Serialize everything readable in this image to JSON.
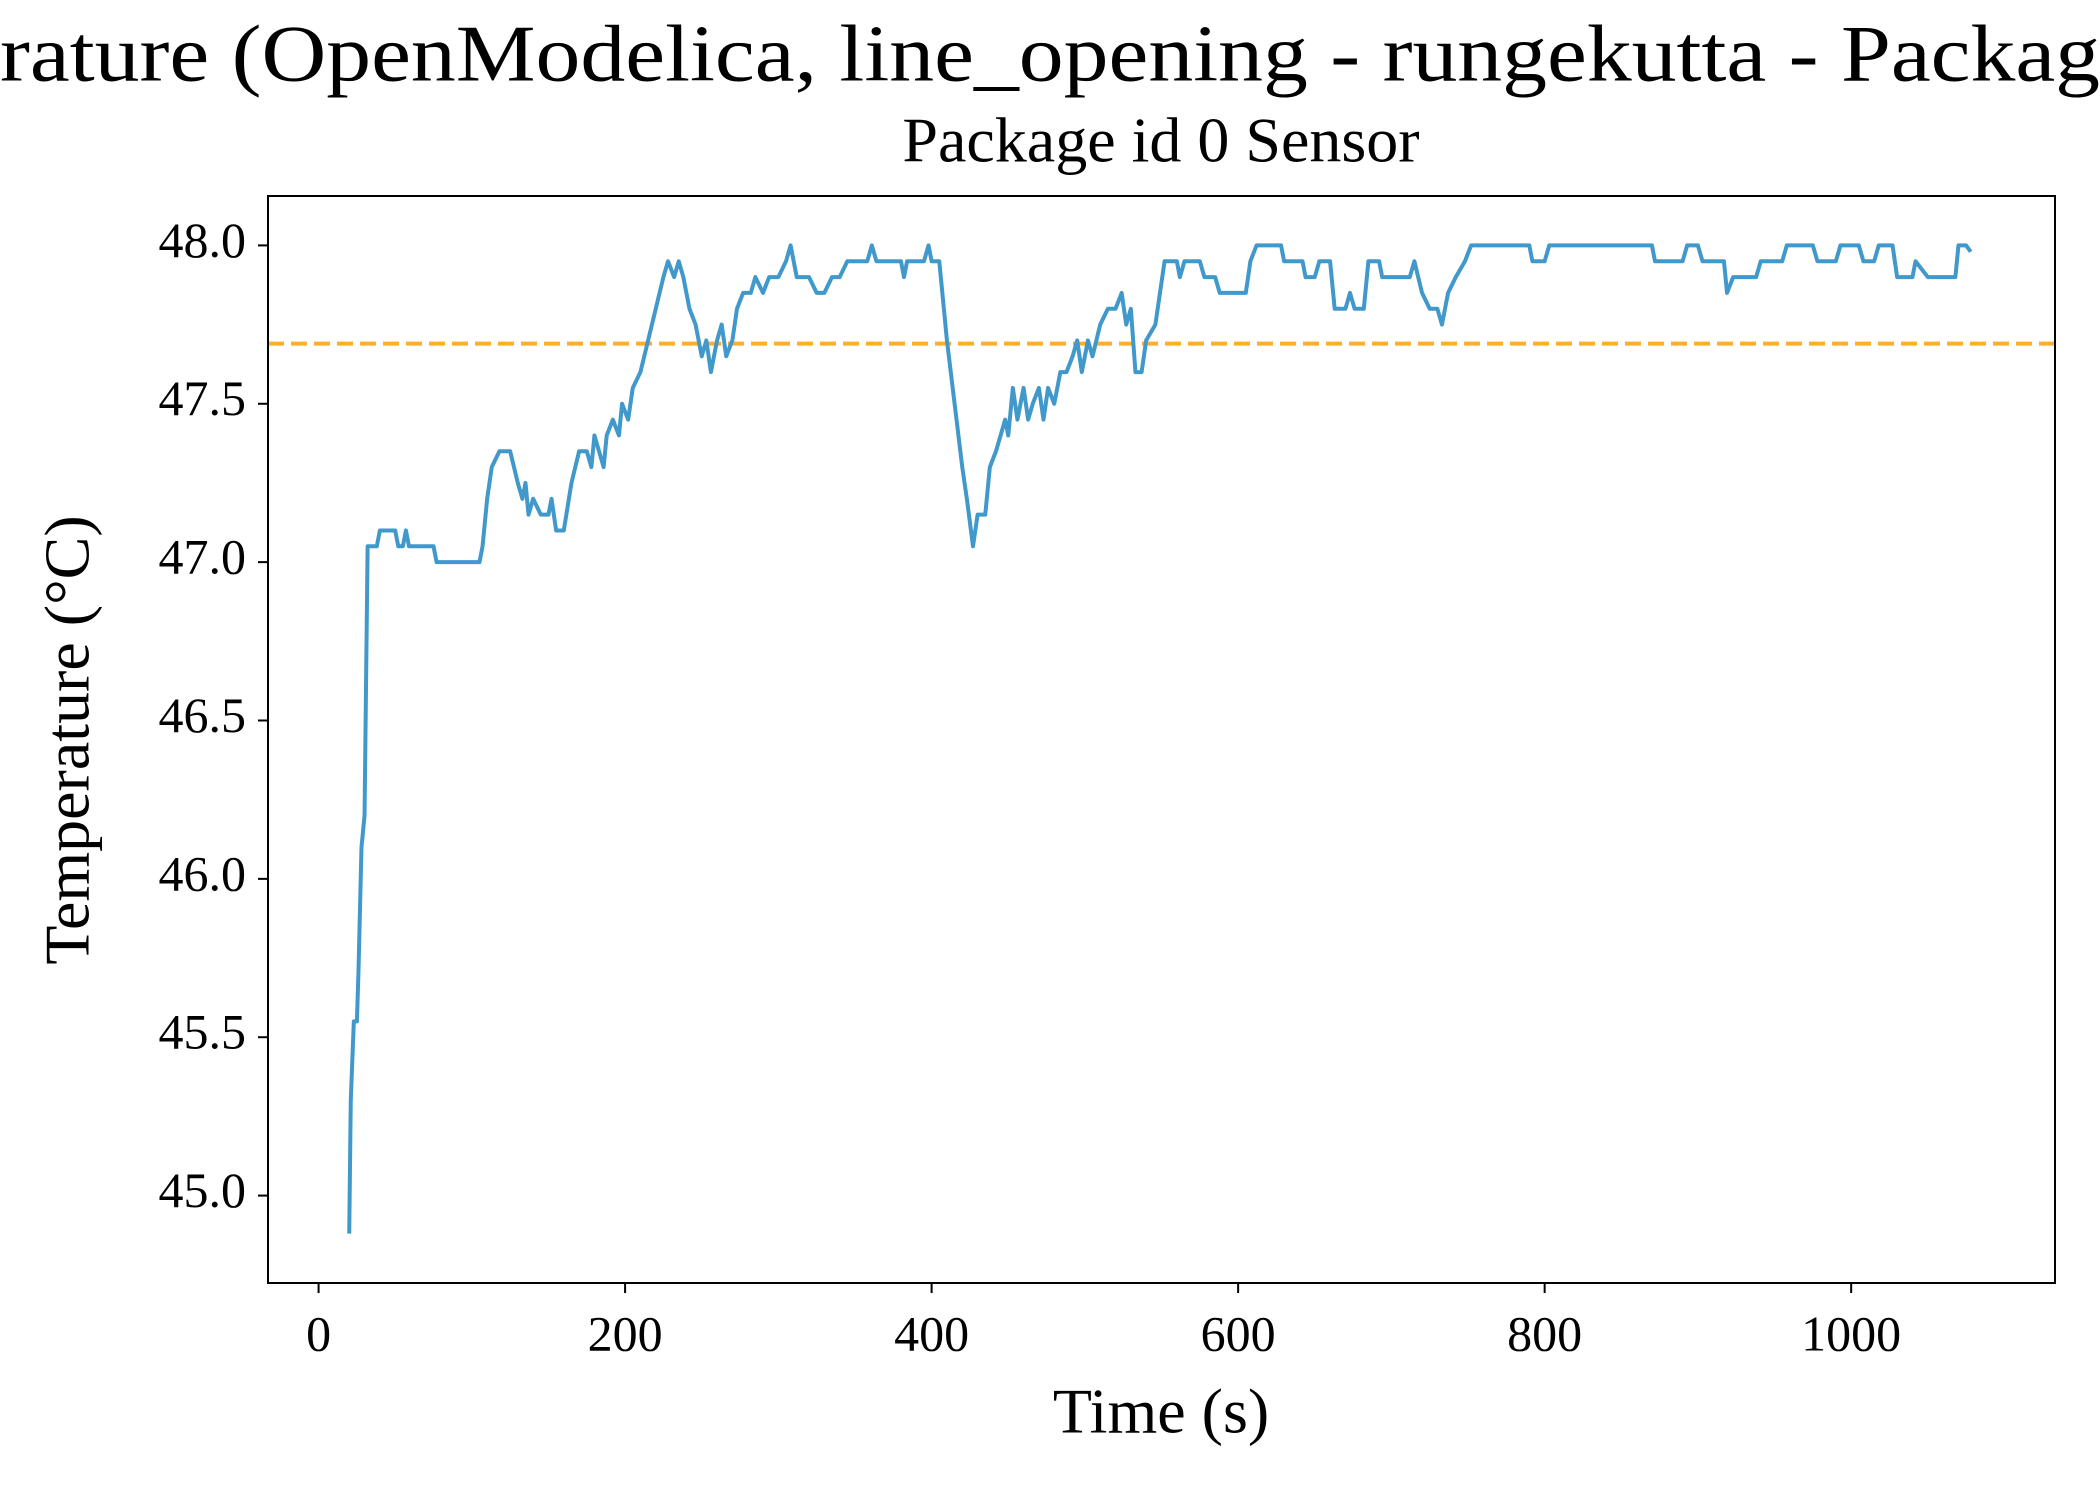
{
  "chart_data": {
    "type": "line",
    "title": "rature (OpenModelica, line_opening - rungekutta - Packag",
    "subtitle": "Package id 0 Sensor",
    "x_label": "Time (s)",
    "y_label": "Temperature (°C)",
    "xlim": [
      -33,
      1133
    ],
    "ylim": [
      44.724,
      48.156
    ],
    "xticks": [
      0,
      200,
      400,
      600,
      800,
      1000
    ],
    "yticks": [
      {
        "value": 45,
        "label": "45.0"
      },
      45.5,
      {
        "value": 46,
        "label": "46.0"
      },
      46.5,
      {
        "value": 47,
        "label": "47.0"
      },
      47.5,
      {
        "value": 48,
        "label": "48.0"
      }
    ],
    "reference_line": {
      "value": 47.69,
      "color": "#ffae2a"
    },
    "series": [
      {
        "color": "#4198cb",
        "x": [
          20,
          21,
          23,
          25,
          26,
          28,
          30,
          32,
          38,
          40,
          50,
          52,
          55,
          57,
          59,
          75,
          77,
          105,
          107,
          110,
          113,
          118,
          125,
          130,
          133,
          135,
          137,
          140,
          145,
          150,
          152,
          155,
          160,
          165,
          170,
          175,
          178,
          180,
          183,
          186,
          188,
          192,
          196,
          198,
          202,
          205,
          210,
          215,
          220,
          225,
          228,
          232,
          235,
          238,
          242,
          246,
          250,
          253,
          256,
          260,
          263,
          266,
          270,
          273,
          277,
          282,
          285,
          290,
          294,
          300,
          305,
          308,
          312,
          320,
          325,
          330,
          335,
          340,
          345,
          358,
          361,
          364,
          380,
          382,
          384,
          395,
          398,
          400,
          405,
          410,
          415,
          420,
          423,
          427,
          430,
          435,
          438,
          442,
          445,
          448,
          450,
          453,
          456,
          460,
          463,
          466,
          470,
          473,
          476,
          480,
          484,
          488,
          492,
          495,
          498,
          502,
          505,
          510,
          515,
          520,
          524,
          527,
          530,
          533,
          537,
          540,
          546,
          552,
          560,
          562,
          565,
          575,
          578,
          585,
          588,
          605,
          608,
          612,
          628,
          630,
          642,
          644,
          650,
          653,
          660,
          663,
          670,
          673,
          676,
          682,
          685,
          692,
          694,
          712,
          715,
          720,
          725,
          730,
          733,
          737,
          742,
          748,
          752,
          790,
          792,
          800,
          803,
          870,
          872,
          890,
          893,
          900,
          903,
          917,
          919,
          923,
          938,
          941,
          955,
          958,
          975,
          978,
          990,
          993,
          1005,
          1008,
          1015,
          1018,
          1027,
          1030,
          1040,
          1042,
          1050,
          1068,
          1070,
          1075,
          1078
        ],
        "values": [
          44.88,
          45.3,
          45.55,
          45.55,
          45.7,
          46.1,
          46.2,
          47.05,
          47.05,
          47.1,
          47.1,
          47.05,
          47.05,
          47.1,
          47.05,
          47.05,
          47.0,
          47.0,
          47.05,
          47.2,
          47.3,
          47.35,
          47.35,
          47.25,
          47.2,
          47.25,
          47.15,
          47.2,
          47.15,
          47.15,
          47.2,
          47.1,
          47.1,
          47.25,
          47.35,
          47.35,
          47.3,
          47.4,
          47.35,
          47.3,
          47.4,
          47.45,
          47.4,
          47.5,
          47.45,
          47.55,
          47.6,
          47.7,
          47.8,
          47.9,
          47.95,
          47.9,
          47.95,
          47.9,
          47.8,
          47.75,
          47.65,
          47.7,
          47.6,
          47.7,
          47.75,
          47.65,
          47.7,
          47.8,
          47.85,
          47.85,
          47.9,
          47.85,
          47.9,
          47.9,
          47.95,
          48.0,
          47.9,
          47.9,
          47.85,
          47.85,
          47.9,
          47.9,
          47.95,
          47.95,
          48.0,
          47.95,
          47.95,
          47.9,
          47.95,
          47.95,
          48.0,
          47.95,
          47.95,
          47.7,
          47.5,
          47.3,
          47.2,
          47.05,
          47.15,
          47.15,
          47.3,
          47.35,
          47.4,
          47.45,
          47.4,
          47.55,
          47.45,
          47.55,
          47.45,
          47.5,
          47.55,
          47.45,
          47.55,
          47.5,
          47.6,
          47.6,
          47.65,
          47.7,
          47.6,
          47.7,
          47.65,
          47.75,
          47.8,
          47.8,
          47.85,
          47.75,
          47.8,
          47.6,
          47.6,
          47.7,
          47.75,
          47.95,
          47.95,
          47.9,
          47.95,
          47.95,
          47.9,
          47.9,
          47.85,
          47.85,
          47.95,
          48.0,
          48.0,
          47.95,
          47.95,
          47.9,
          47.9,
          47.95,
          47.95,
          47.8,
          47.8,
          47.85,
          47.8,
          47.8,
          47.95,
          47.95,
          47.9,
          47.9,
          47.95,
          47.85,
          47.8,
          47.8,
          47.75,
          47.85,
          47.9,
          47.95,
          48.0,
          48.0,
          47.95,
          47.95,
          48.0,
          48.0,
          47.95,
          47.95,
          48.0,
          48.0,
          47.95,
          47.95,
          47.85,
          47.9,
          47.9,
          47.95,
          47.95,
          48.0,
          48.0,
          47.95,
          47.95,
          48.0,
          48.0,
          47.95,
          47.95,
          48.0,
          48.0,
          47.9,
          47.9,
          47.95,
          47.9,
          47.9,
          48.0,
          48.0,
          47.98
        ]
      }
    ]
  }
}
